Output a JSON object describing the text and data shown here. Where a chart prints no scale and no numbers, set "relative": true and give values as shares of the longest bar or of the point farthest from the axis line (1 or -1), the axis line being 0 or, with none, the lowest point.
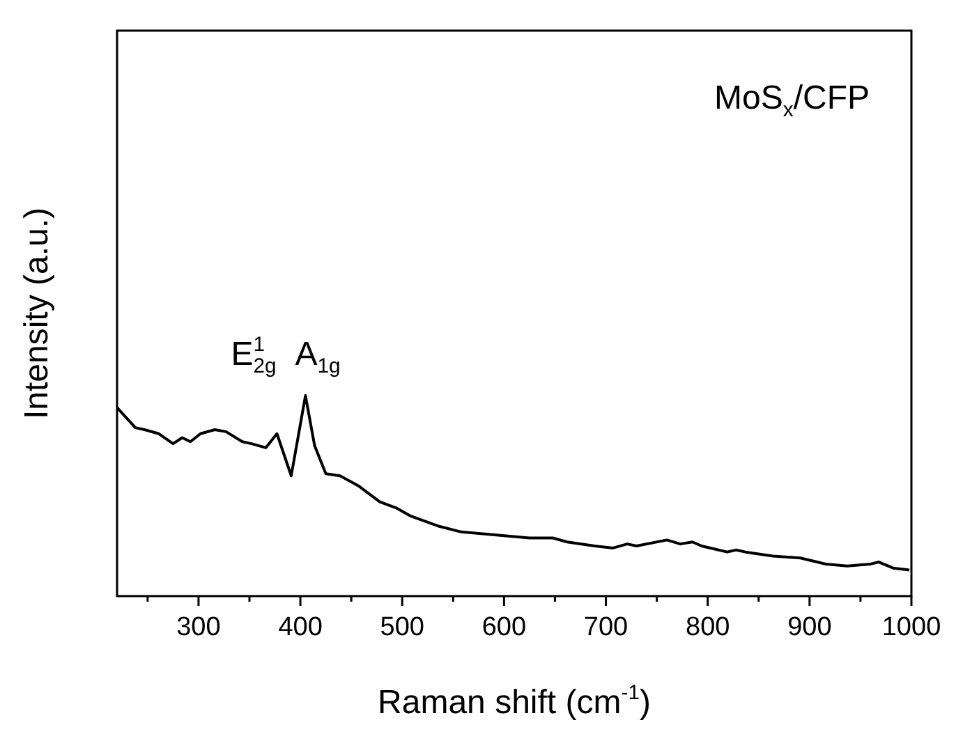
{
  "chart_data": {
    "type": "line",
    "relative": true,
    "xlabel": "Raman shift (cm$^{-1}$)",
    "ylabel": "Intensity (a.u.)",
    "xlim": [
      220,
      1000
    ],
    "xticks": [
      {
        "value": 250,
        "label": null
      },
      300,
      {
        "value": 350,
        "label": null
      },
      400,
      {
        "value": 450,
        "label": null
      },
      500,
      {
        "value": 550,
        "label": null
      },
      600,
      {
        "value": 650,
        "label": null
      },
      700,
      {
        "value": 750,
        "label": null
      },
      800,
      {
        "value": 850,
        "label": null
      },
      900,
      {
        "value": 950,
        "label": null
      },
      1000
    ],
    "grid": false,
    "legend": false,
    "marker": "none",
    "line_style": "solid",
    "annotations": [
      "MoS$_{x}$/CFP",
      "E$^{1}$$_{2g}$",
      "A$_{1g}$"
    ],
    "series": [
      {
        "color": "#000000",
        "x": [
          220,
          238,
          247,
          261,
          275,
          284,
          292,
          302,
          316,
          327,
          343,
          352,
          366,
          377,
          391,
          405,
          414,
          425,
          439,
          457,
          478,
          494,
          508,
          535,
          558,
          581,
          625,
          648,
          662,
          689,
          707,
          721,
          730,
          760,
          773,
          785,
          794,
          819,
          828,
          837,
          864,
          891,
          916,
          937,
          960,
          968,
          982,
          998
        ],
        "values": [
          0.94,
          0.84,
          0.83,
          0.81,
          0.76,
          0.79,
          0.77,
          0.81,
          0.83,
          0.82,
          0.77,
          0.76,
          0.74,
          0.81,
          0.6,
          1,
          0.75,
          0.61,
          0.6,
          0.55,
          0.47,
          0.44,
          0.4,
          0.35,
          0.32,
          0.31,
          0.29,
          0.29,
          0.27,
          0.25,
          0.24,
          0.26,
          0.25,
          0.28,
          0.26,
          0.27,
          0.25,
          0.22,
          0.23,
          0.22,
          0.2,
          0.19,
          0.16,
          0.15,
          0.16,
          0.17,
          0.14,
          0.13
        ]
      }
    ]
  }
}
